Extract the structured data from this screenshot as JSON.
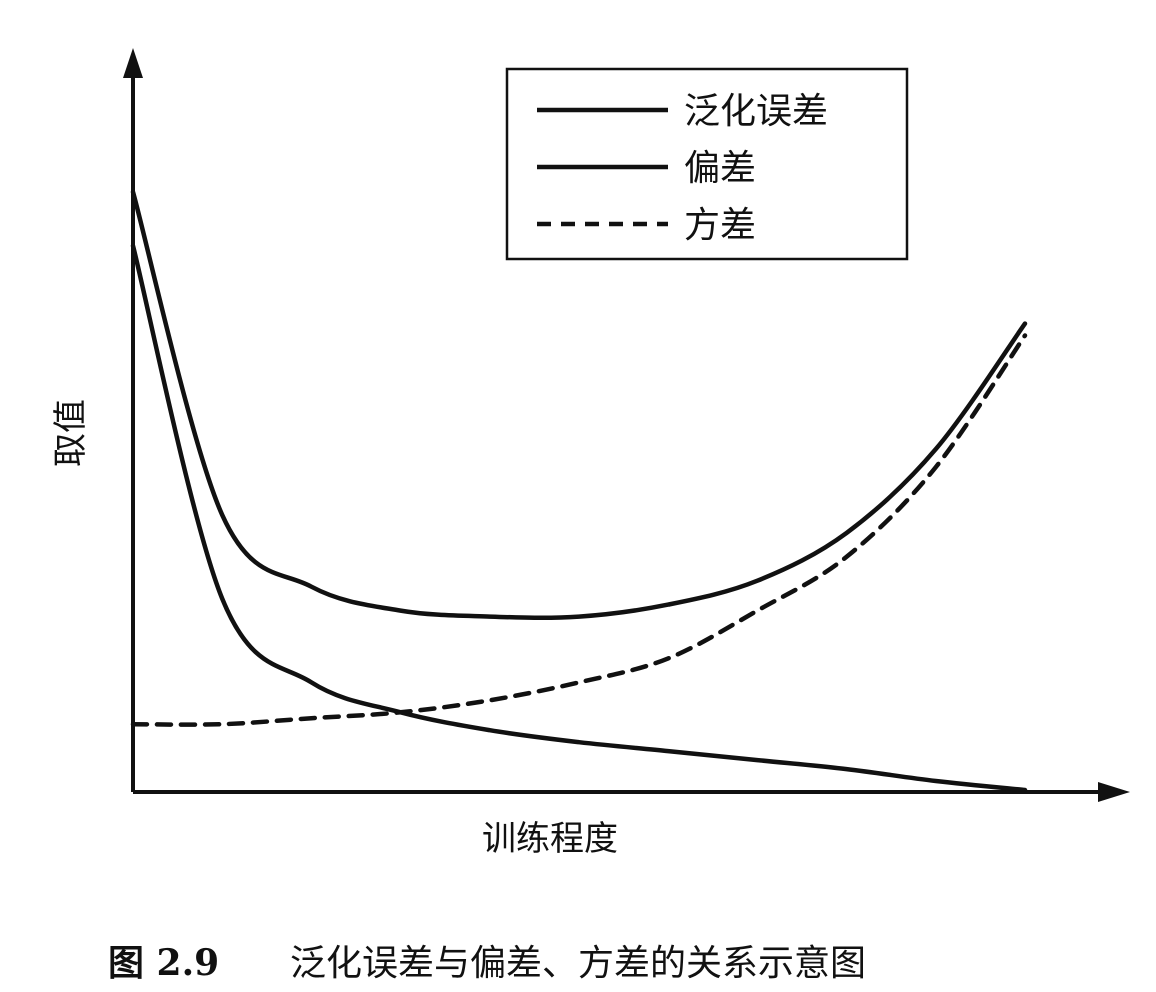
{
  "chart_data": {
    "type": "line",
    "title": "",
    "xlabel": "训练程度",
    "ylabel": "取值",
    "ylim": [
      0,
      1
    ],
    "xlim": [
      0,
      1
    ],
    "legend_position": "top-right",
    "grid": false,
    "x": [
      0,
      0.1,
      0.2,
      0.3,
      0.4,
      0.5,
      0.6,
      0.7,
      0.8,
      0.9,
      1.0
    ],
    "series": [
      {
        "name": "泛化误差",
        "style": "solid",
        "values": [
          1.0,
          0.46,
          0.34,
          0.3,
          0.29,
          0.29,
          0.31,
          0.35,
          0.43,
          0.57,
          0.78
        ]
      },
      {
        "name": "偏差",
        "style": "solid",
        "values": [
          0.91,
          0.32,
          0.18,
          0.13,
          0.1,
          0.08,
          0.065,
          0.05,
          0.035,
          0.015,
          0.0
        ]
      },
      {
        "name": "方差",
        "style": "dashed",
        "values": [
          0.11,
          0.11,
          0.12,
          0.13,
          0.15,
          0.18,
          0.22,
          0.3,
          0.39,
          0.54,
          0.76
        ]
      }
    ]
  },
  "caption": {
    "label": "图 2.9",
    "text": "泛化误差与偏差、方差的关系示意图"
  }
}
